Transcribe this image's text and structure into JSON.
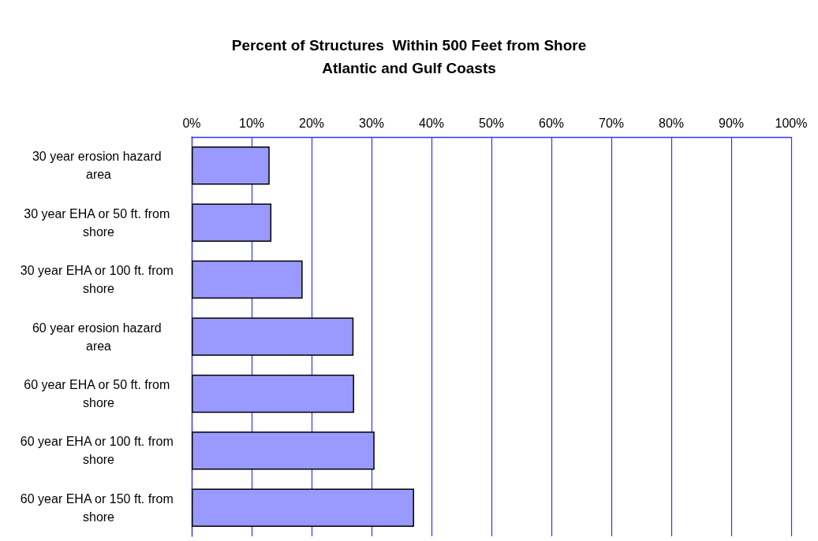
{
  "chart_data": {
    "type": "bar",
    "orientation": "horizontal",
    "title": "Percent of Structures  Within 500 Feet from Shore\nAtlantic and Gulf Coasts",
    "categories": [
      "30 year erosion hazard area",
      "30 year EHA or 50 ft. from shore",
      "30 year EHA or 100 ft. from shore",
      "60 year erosion hazard area",
      "60 year EHA or 50 ft. from shore",
      "60 year EHA or 100 ft. from shore",
      "60 year EHA or 150 ft. from shore"
    ],
    "values": [
      13.0,
      13.3,
      18.5,
      27.0,
      27.1,
      30.5,
      37.1
    ],
    "color": "#9999ff",
    "xlim": [
      0,
      100
    ],
    "xticks": [
      {
        "value": 0,
        "label": "0%"
      },
      {
        "value": 10,
        "label": "10%"
      },
      {
        "value": 20,
        "label": "20%"
      },
      {
        "value": 30,
        "label": "30%"
      },
      {
        "value": 40,
        "label": "40%"
      },
      {
        "value": 50,
        "label": "50%"
      },
      {
        "value": 60,
        "label": "60%"
      },
      {
        "value": 70,
        "label": "70%"
      },
      {
        "value": 80,
        "label": "80%"
      },
      {
        "value": 90,
        "label": "90%"
      },
      {
        "value": 100,
        "label": "100%"
      }
    ],
    "grid": "x"
  }
}
